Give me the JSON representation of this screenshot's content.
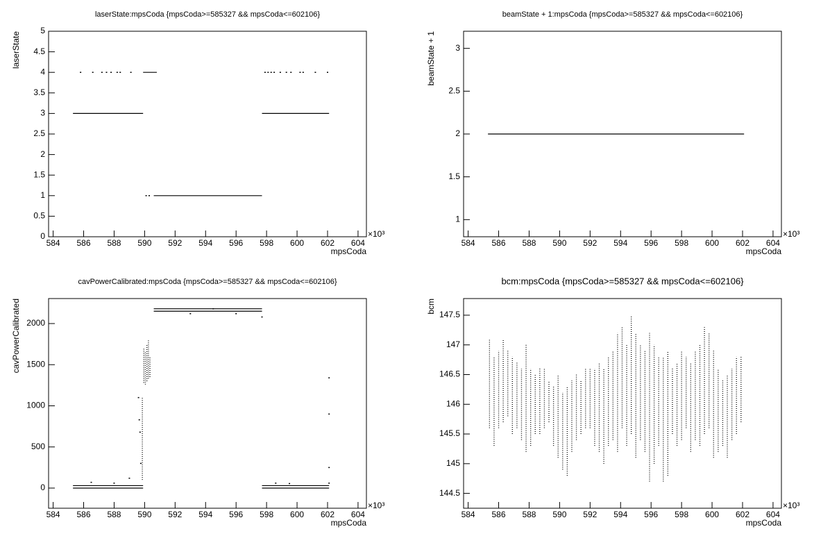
{
  "chart_data": [
    {
      "type": "scatter",
      "title": "laserState:mpsCoda {mpsCoda>=585327 && mpsCoda<=602106}",
      "xlabel": "mpsCoda",
      "ylabel": "laserState",
      "x_scale_label": "×10³",
      "xlim": [
        583.7,
        604.55
      ],
      "ylim": [
        0,
        5
      ],
      "xticks": [
        584,
        586,
        588,
        590,
        592,
        594,
        596,
        598,
        600,
        602,
        604
      ],
      "yticks": [
        0,
        0.5,
        1,
        1.5,
        2,
        2.5,
        3,
        3.5,
        4,
        4.5,
        5
      ],
      "color": "#000000",
      "lines": [
        {
          "x": [
            585.3,
            589.9,
            null,
            597.7,
            602.1
          ],
          "values": [
            3,
            3,
            null,
            3,
            3
          ]
        },
        {
          "x": [
            589.9,
            590.8
          ],
          "values": [
            4,
            4
          ]
        },
        {
          "x": [
            590.6,
            597.7
          ],
          "values": [
            1,
            1
          ]
        }
      ],
      "points": {
        "x": [
          585.8,
          586.6,
          587.2,
          587.5,
          587.8,
          588.2,
          588.4,
          589.1,
          590.1,
          590.3,
          597.9,
          598.1,
          598.3,
          598.5,
          598.9,
          599.3,
          599.6,
          600.2,
          600.4,
          601.2,
          602.0
        ],
        "values": [
          4,
          4,
          4,
          4,
          4,
          4,
          4,
          4,
          1,
          1,
          4,
          4,
          4,
          4,
          4,
          4,
          4,
          4,
          4,
          4,
          4
        ]
      }
    },
    {
      "type": "scatter",
      "title": "beamState + 1:mpsCoda {mpsCoda>=585327 && mpsCoda<=602106}",
      "xlabel": "mpsCoda",
      "ylabel": "beamState + 1",
      "x_scale_label": "×10³",
      "xlim": [
        583.7,
        604.55
      ],
      "ylim": [
        0.8,
        3.2
      ],
      "xticks": [
        584,
        586,
        588,
        590,
        592,
        594,
        596,
        598,
        600,
        602,
        604
      ],
      "yticks": [
        1,
        1.5,
        2,
        2.5,
        3
      ],
      "color": "#000000",
      "lines": [
        {
          "x": [
            585.3,
            602.1
          ],
          "values": [
            2,
            2
          ]
        }
      ]
    },
    {
      "type": "scatter",
      "title": "cavPowerCalibrated:mpsCoda {mpsCoda>=585327 && mpsCoda<=602106}",
      "xlabel": "mpsCoda",
      "ylabel": "cavPowerCalibrated",
      "x_scale_label": "×10³",
      "xlim": [
        583.7,
        604.55
      ],
      "ylim": [
        -245,
        2304
      ],
      "xticks": [
        584,
        586,
        588,
        590,
        592,
        594,
        596,
        598,
        600,
        602,
        604
      ],
      "yticks": [
        0,
        500,
        1000,
        1500,
        2000
      ],
      "color": "#000000",
      "lines": [
        {
          "x": [
            585.3,
            589.9,
            null,
            597.7,
            602.1
          ],
          "values": [
            0,
            0,
            null,
            0,
            0
          ]
        },
        {
          "x": [
            585.3,
            589.9,
            null,
            597.7,
            602.1
          ],
          "values": [
            30,
            30,
            null,
            30,
            30
          ]
        },
        {
          "x": [
            590.6,
            597.7
          ],
          "values": [
            2150,
            2150
          ]
        },
        {
          "x": [
            590.6,
            597.7
          ],
          "values": [
            2180,
            2180
          ]
        }
      ],
      "ranges": {
        "x": [
          589.85,
          589.95,
          590.05,
          590.15,
          590.25,
          590.35
        ],
        "low": [
          100,
          1280,
          1260,
          1300,
          1330,
          1350
        ],
        "high": [
          1100,
          1700,
          1650,
          1750,
          1800,
          1600
        ]
      },
      "points": {
        "x": [
          586.5,
          588,
          589,
          589.6,
          589.65,
          589.7,
          589.75,
          593,
          594.5,
          596,
          597.7,
          598.6,
          599.5,
          602.1,
          602.1,
          602.1,
          602.1
        ],
        "values": [
          70,
          60,
          120,
          1100,
          830,
          680,
          300,
          2120,
          2180,
          2120,
          2080,
          60,
          55,
          1340,
          900,
          250,
          60
        ]
      }
    },
    {
      "type": "scatter",
      "title": "bcm:mpsCoda {mpsCoda>=585327 && mpsCoda<=602106}",
      "xlabel": "mpsCoda",
      "ylabel": "bcm",
      "x_scale_label": "×10³",
      "xlim": [
        583.7,
        604.55
      ],
      "ylim": [
        144.25,
        147.78
      ],
      "xticks": [
        584,
        586,
        588,
        590,
        592,
        594,
        596,
        598,
        600,
        602,
        604
      ],
      "yticks": [
        144.5,
        145,
        145.5,
        146,
        146.5,
        147,
        147.5
      ],
      "color": "#000000",
      "ranges": {
        "x": [
          585.4,
          585.7,
          586.0,
          586.3,
          586.6,
          586.9,
          587.2,
          587.5,
          587.8,
          588.1,
          588.4,
          588.7,
          589.0,
          589.3,
          589.6,
          589.9,
          590.2,
          590.5,
          590.8,
          591.1,
          591.4,
          591.7,
          592.0,
          592.3,
          592.6,
          592.9,
          593.2,
          593.5,
          593.8,
          594.1,
          594.4,
          594.7,
          595.0,
          595.3,
          595.6,
          595.9,
          596.2,
          596.5,
          596.8,
          597.1,
          597.4,
          597.7,
          598.0,
          598.3,
          598.6,
          598.9,
          599.2,
          599.5,
          599.8,
          600.1,
          600.4,
          600.7,
          601.0,
          601.3,
          601.6,
          601.9
        ],
        "low": [
          145.6,
          145.3,
          145.6,
          145.7,
          145.8,
          145.5,
          145.6,
          145.4,
          145.2,
          145.3,
          145.5,
          145.5,
          145.6,
          145.7,
          145.3,
          145.1,
          144.9,
          144.8,
          145.2,
          145.4,
          145.5,
          145.6,
          145.6,
          145.3,
          145.2,
          145.0,
          145.3,
          145.4,
          145.2,
          145.6,
          145.3,
          145.5,
          145.1,
          145.4,
          145.2,
          144.7,
          145.0,
          145.3,
          144.7,
          144.8,
          145.5,
          145.3,
          145.4,
          145.6,
          145.2,
          145.4,
          145.3,
          145.5,
          145.6,
          145.1,
          145.2,
          145.3,
          145.1,
          145.4,
          145.5,
          145.7
        ],
        "high": [
          147.1,
          146.8,
          146.9,
          147.1,
          146.9,
          146.8,
          146.7,
          146.6,
          147.0,
          146.6,
          146.5,
          146.6,
          146.6,
          146.4,
          146.3,
          146.5,
          146.2,
          146.3,
          146.4,
          146.5,
          146.4,
          146.6,
          146.6,
          146.6,
          146.7,
          146.6,
          146.8,
          146.9,
          147.2,
          147.3,
          147.0,
          147.5,
          147.2,
          147.0,
          146.9,
          147.2,
          147.0,
          146.8,
          146.8,
          146.9,
          146.6,
          146.7,
          146.9,
          146.8,
          146.7,
          146.9,
          147.0,
          147.3,
          147.2,
          146.9,
          146.6,
          146.4,
          146.5,
          146.6,
          146.8,
          146.8
        ]
      }
    }
  ]
}
